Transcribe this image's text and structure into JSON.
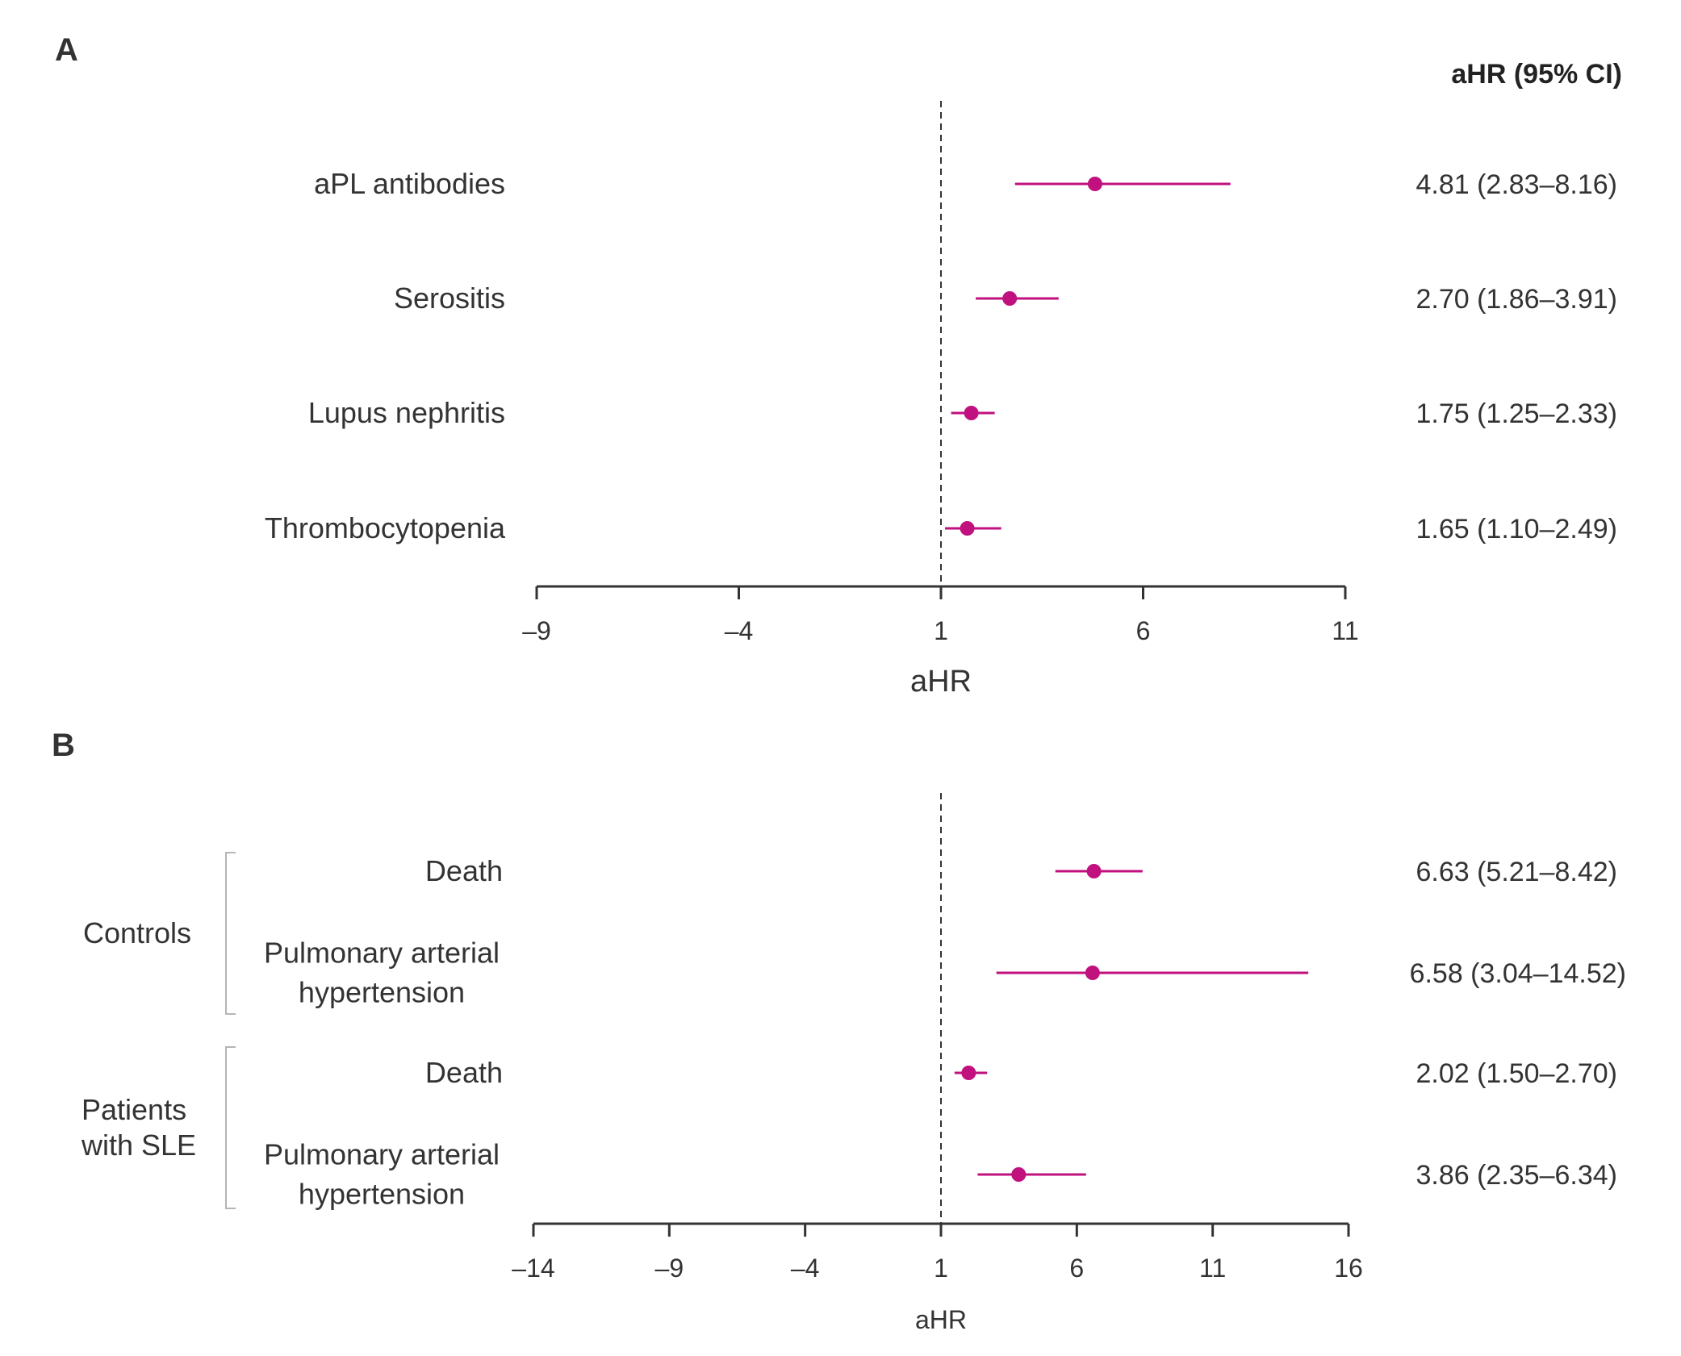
{
  "colors": {
    "marker": "#c0117f",
    "axis": "#333333",
    "text": "#333333",
    "bracket": "#b5b5b5"
  },
  "column_header": "aHR (95% CI)",
  "chart_data": [
    {
      "type": "forest",
      "panel": "A",
      "xlabel": "aHR",
      "xlim": [
        -9,
        11
      ],
      "xticks": [
        -9,
        -4,
        1,
        6,
        11
      ],
      "xtick_labels": [
        "–9",
        "–4",
        "1",
        "6",
        "11"
      ],
      "reference_line": 1,
      "rows": [
        {
          "label": [
            "aPL antibodies"
          ],
          "group": "",
          "estimate": 4.81,
          "lower": 2.83,
          "upper": 8.16,
          "value_text": "4.81 (2.83–8.16)"
        },
        {
          "label": [
            "Serositis"
          ],
          "group": "",
          "estimate": 2.7,
          "lower": 1.86,
          "upper": 3.91,
          "value_text": "2.70 (1.86–3.91)"
        },
        {
          "label": [
            "Lupus nephritis"
          ],
          "group": "",
          "estimate": 1.75,
          "lower": 1.25,
          "upper": 2.33,
          "value_text": "1.75 (1.25–2.33)"
        },
        {
          "label": [
            "Thrombocytopenia"
          ],
          "group": "",
          "estimate": 1.65,
          "lower": 1.1,
          "upper": 2.49,
          "value_text": "1.65 (1.10–2.49)"
        }
      ],
      "groups": []
    },
    {
      "type": "forest",
      "panel": "B",
      "xlabel": "aHR",
      "xlim": [
        -14,
        16
      ],
      "xticks": [
        -14,
        -9,
        -4,
        1,
        6,
        11,
        16
      ],
      "xtick_labels": [
        "–14",
        "–9",
        "–4",
        "1",
        "6",
        "11",
        "16"
      ],
      "reference_line": 1,
      "rows": [
        {
          "label": [
            "Death"
          ],
          "group": "Controls",
          "estimate": 6.63,
          "lower": 5.21,
          "upper": 8.42,
          "value_text": "6.63 (5.21–8.42)"
        },
        {
          "label": [
            "Pulmonary arterial",
            "hypertension"
          ],
          "group": "Controls",
          "estimate": 6.58,
          "lower": 3.04,
          "upper": 14.52,
          "value_text": "6.58 (3.04–14.52)"
        },
        {
          "label": [
            "Death"
          ],
          "group": "Patients with SLE",
          "estimate": 2.02,
          "lower": 1.5,
          "upper": 2.7,
          "value_text": "2.02 (1.50–2.70)"
        },
        {
          "label": [
            "Pulmonary arterial",
            "hypertension"
          ],
          "group": "Patients with SLE",
          "estimate": 3.86,
          "lower": 2.35,
          "upper": 6.34,
          "value_text": "3.86 (2.35–6.34)"
        }
      ],
      "groups": [
        {
          "name": "Controls",
          "label": [
            "Controls"
          ]
        },
        {
          "name": "Patients with SLE",
          "label": [
            "Patients",
            "with SLE"
          ]
        }
      ]
    }
  ]
}
